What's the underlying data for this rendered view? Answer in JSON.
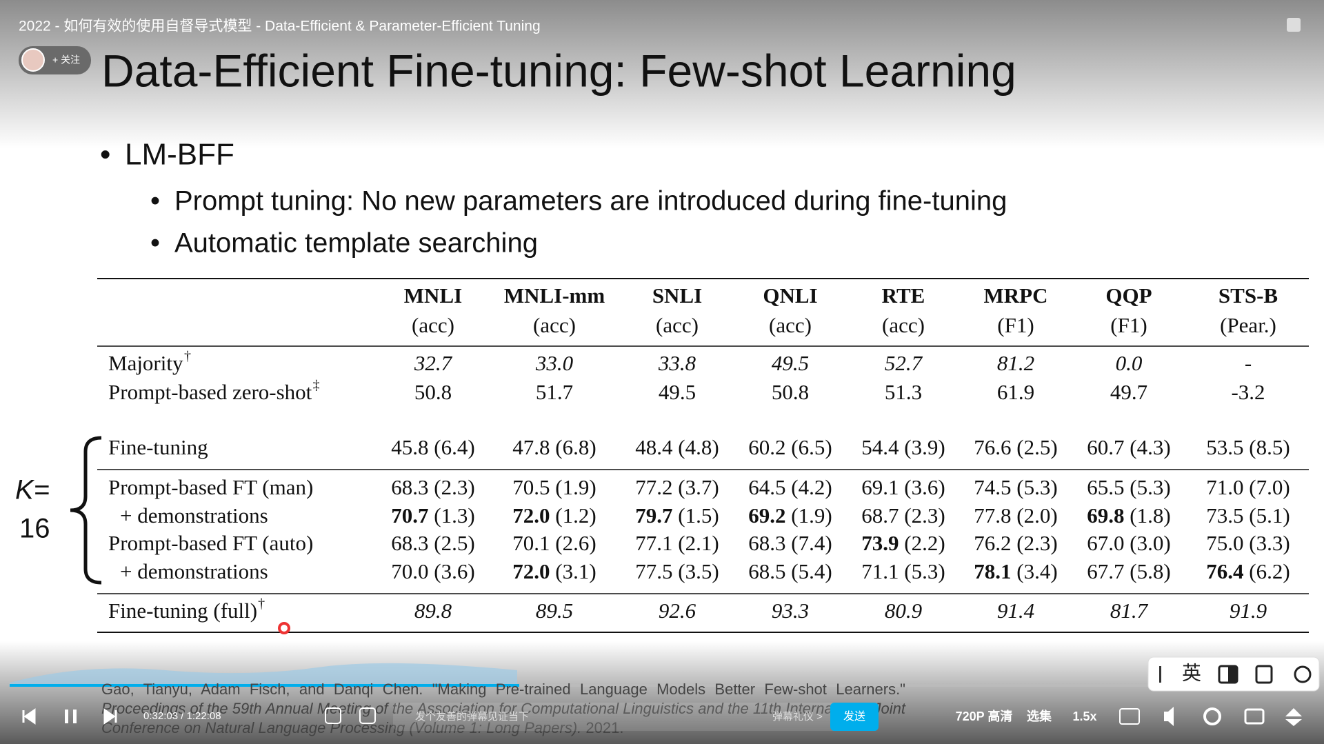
{
  "player": {
    "video_title": "2022 - 如何有效的使用自督导式模型 - Data-Efficient & Parameter-Efficient Tuning",
    "follow": "+ 关注",
    "time": "0:32:03 / 1:22:08",
    "danmaku_placeholder": "发个友善的弹幕见证当下",
    "danmaku_etiquette": "弹幕礼仪 >",
    "send": "发送",
    "quality": "720P 高清",
    "episodes": "选集",
    "speed": "1.5x",
    "subtitle_lang": "英"
  },
  "slide": {
    "title": "Data-Efficient Fine-tuning: Few-shot Learning",
    "bullets": [
      "LM-BFF"
    ],
    "sub_bullets": [
      "Prompt tuning: No new parameters are introduced during fine-tuning",
      "Automatic template searching"
    ],
    "k_label": "K=",
    "k_value": "16",
    "table": {
      "columns": [
        {
          "name": "MNLI",
          "metric": "(acc)"
        },
        {
          "name": "MNLI-mm",
          "metric": "(acc)"
        },
        {
          "name": "SNLI",
          "metric": "(acc)"
        },
        {
          "name": "QNLI",
          "metric": "(acc)"
        },
        {
          "name": "RTE",
          "metric": "(acc)"
        },
        {
          "name": "MRPC",
          "metric": "(F1)"
        },
        {
          "name": "QQP",
          "metric": "(F1)"
        },
        {
          "name": "STS-B",
          "metric": "(Pear.)"
        }
      ],
      "rows": [
        {
          "label": "Majority",
          "mark": "†",
          "italic": true,
          "cells": [
            "32.7",
            "33.0",
            "33.8",
            "49.5",
            "52.7",
            "81.2",
            "0.0",
            "-"
          ]
        },
        {
          "label": "Prompt-based zero-shot",
          "mark": "‡",
          "cells": [
            "50.8",
            "51.7",
            "49.5",
            "50.8",
            "51.3",
            "61.9",
            "49.7",
            "-3.2"
          ]
        },
        {
          "label": "Fine-tuning",
          "cells": [
            "45.8 (6.4)",
            "47.8 (6.8)",
            "48.4 (4.8)",
            "60.2 (6.5)",
            "54.4 (3.9)",
            "76.6 (2.5)",
            "60.7 (4.3)",
            "53.5 (8.5)"
          ]
        },
        {
          "label": "Prompt-based FT (man)",
          "cells": [
            "68.3 (2.3)",
            "70.5 (1.9)",
            "77.2 (3.7)",
            "64.5 (4.2)",
            "69.1 (3.6)",
            "74.5 (5.3)",
            "65.5 (5.3)",
            "71.0 (7.0)"
          ]
        },
        {
          "label": "+ demonstrations",
          "bold": [
            0,
            1,
            2,
            3,
            6
          ],
          "cells": [
            "70.7 (1.3)",
            "72.0 (1.2)",
            "79.7 (1.5)",
            "69.2 (1.9)",
            "68.7 (2.3)",
            "77.8 (2.0)",
            "69.8 (1.8)",
            "73.5 (5.1)"
          ]
        },
        {
          "label": "Prompt-based FT (auto)",
          "bold": [
            4
          ],
          "cells": [
            "68.3 (2.5)",
            "70.1 (2.6)",
            "77.1 (2.1)",
            "68.3 (7.4)",
            "73.9 (2.2)",
            "76.2 (2.3)",
            "67.0 (3.0)",
            "75.0 (3.3)"
          ]
        },
        {
          "label": "+ demonstrations",
          "bold": [
            1,
            5,
            7
          ],
          "cells": [
            "70.0 (3.6)",
            "72.0 (3.1)",
            "77.5 (3.5)",
            "68.5 (5.4)",
            "71.1 (5.3)",
            "78.1 (3.4)",
            "67.7 (5.8)",
            "76.4 (6.2)"
          ]
        },
        {
          "label": "Fine-tuning (full)",
          "mark": "†",
          "italic": true,
          "cells": [
            "89.8",
            "89.5",
            "92.6",
            "93.3",
            "80.9",
            "91.4",
            "81.7",
            "91.9"
          ]
        }
      ]
    },
    "citation": {
      "authors": "Gao, Tianyu, Adam Fisch, and Danqi Chen. \"Making Pre-trained Language Models Better Few-shot Learners.\"",
      "venue": "Proceedings of the 59th Annual Meeting of the Association for Computational Linguistics and the 11th International Joint Conference on Natural Language Processing (Volume 1: Long Papers).",
      "year": "2021."
    }
  }
}
